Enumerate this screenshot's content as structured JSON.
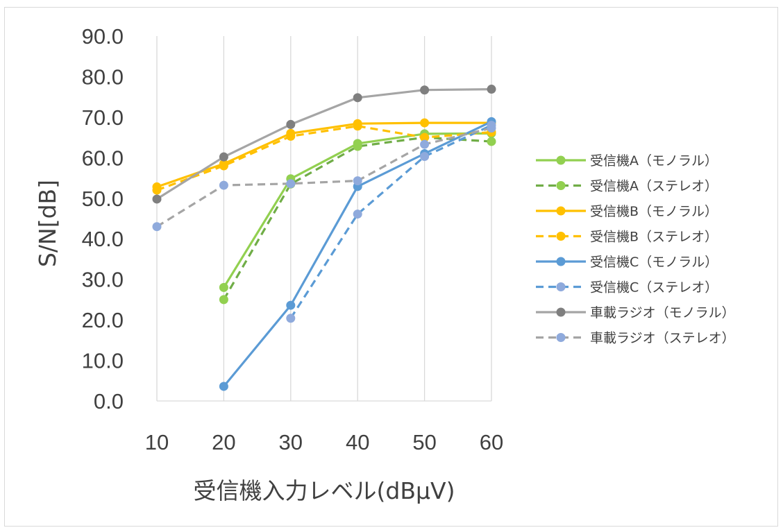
{
  "chart_data": {
    "type": "line",
    "title": "",
    "xlabel": "受信機入力レベル(dBμV)",
    "ylabel": "S/N[dB]",
    "x": [
      10,
      20,
      30,
      40,
      50,
      60
    ],
    "x_tick_labels": [
      "10",
      "20",
      "30",
      "40",
      "50",
      "60"
    ],
    "ylim": [
      0,
      90
    ],
    "y_tick_labels": [
      "0.0",
      "10.0",
      "20.0",
      "30.0",
      "40.0",
      "50.0",
      "60.0",
      "70.0",
      "80.0",
      "90.0"
    ],
    "grid": "vertical",
    "legend_position": "right",
    "series": [
      {
        "name": "受信機A（モノラル）",
        "color": "#92d050",
        "marker_color": "#92d050",
        "dash": false,
        "values": [
          null,
          28.0,
          54.8,
          63.5,
          65.9,
          66.0
        ]
      },
      {
        "name": "受信機A（ステレオ）",
        "color": "#70ad47",
        "marker_color": "#92d050",
        "dash": true,
        "values": [
          null,
          25.0,
          53.5,
          62.8,
          65.0,
          64.0
        ]
      },
      {
        "name": "受信機B（モノラル）",
        "color": "#ffc000",
        "marker_color": "#ffc000",
        "dash": false,
        "values": [
          52.8,
          58.5,
          66.0,
          68.4,
          68.6,
          68.6
        ]
      },
      {
        "name": "受信機B（ステレオ）",
        "color": "#ffc000",
        "marker_color": "#ffc000",
        "dash": true,
        "values": [
          52.0,
          58.0,
          65.3,
          67.8,
          65.0,
          66.3
        ]
      },
      {
        "name": "受信機C（モノラル）",
        "color": "#5b9bd5",
        "marker_color": "#5b9bd5",
        "dash": false,
        "values": [
          null,
          3.6,
          23.6,
          52.9,
          61.0,
          68.9
        ]
      },
      {
        "name": "受信機C（ステレオ）",
        "color": "#5b9bd5",
        "marker_color": "#8faadc",
        "dash": true,
        "values": [
          null,
          null,
          20.4,
          46.1,
          60.3,
          68.0
        ]
      },
      {
        "name": "車載ラジオ（モノラル）",
        "color": "#a5a5a5",
        "marker_color": "#7f7f7f",
        "dash": false,
        "values": [
          49.8,
          60.2,
          68.2,
          74.8,
          76.7,
          76.9
        ]
      },
      {
        "name": "車載ラジオ（ステレオ）",
        "color": "#a5a5a5",
        "marker_color": "#8faadc",
        "dash": true,
        "values": [
          43.0,
          53.2,
          53.6,
          54.3,
          63.3,
          67.3
        ]
      }
    ]
  }
}
